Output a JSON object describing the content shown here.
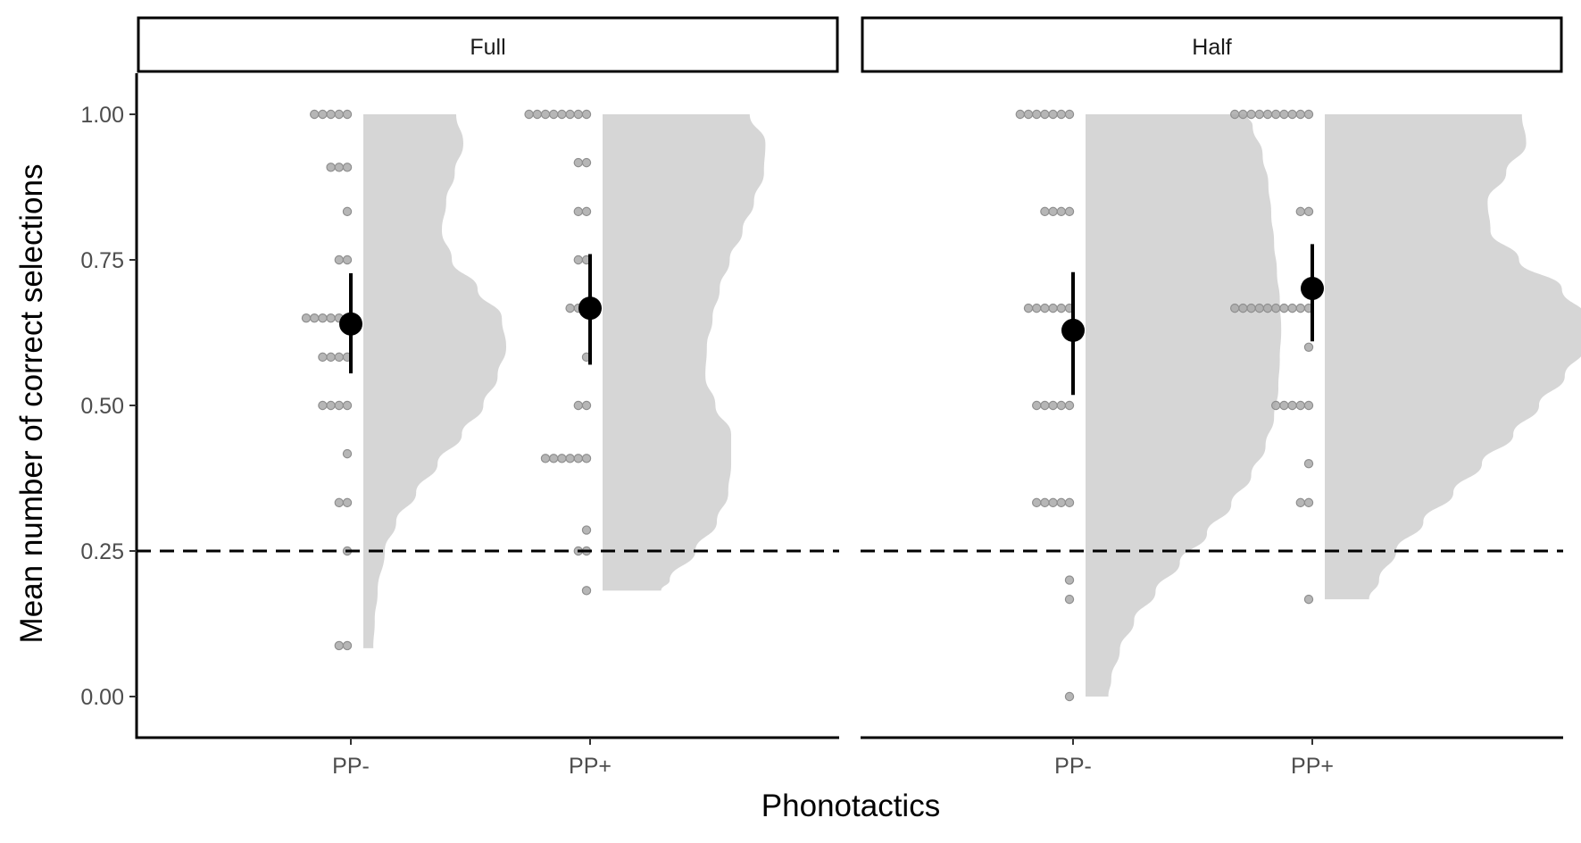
{
  "chart_data": {
    "type": "raincloud",
    "xlabel": "Phonotactics",
    "ylabel": "Mean number of correct selections",
    "ylim": [
      -0.07,
      1.07
    ],
    "yticks": [
      0,
      0.25,
      0.5,
      0.75,
      1.0
    ],
    "ytick_labels": [
      "0.00",
      "0.25",
      "0.50",
      "0.75",
      "1.00"
    ],
    "reference_line": {
      "y": 0.25,
      "style": "dashed"
    },
    "categories": [
      "PP-",
      "PP+"
    ],
    "grid": false,
    "legend": "none",
    "colors": {
      "density": "#d6d6d6",
      "points": "#a9a9a9",
      "summary": "#000000"
    },
    "panels": [
      {
        "name": "Full",
        "groups": [
          {
            "category": "PP-",
            "mean": 0.64,
            "ci": [
              0.555,
              0.727
            ],
            "points": [
              {
                "y": 1.0,
                "n": 5
              },
              {
                "y": 0.909,
                "n": 3
              },
              {
                "y": 0.833,
                "n": 1
              },
              {
                "y": 0.75,
                "n": 2
              },
              {
                "y": 0.65,
                "n": 6
              },
              {
                "y": 0.583,
                "n": 4
              },
              {
                "y": 0.5,
                "n": 4
              },
              {
                "y": 0.417,
                "n": 1
              },
              {
                "y": 0.333,
                "n": 2
              },
              {
                "y": 0.25,
                "n": 1
              },
              {
                "y": 0.0875,
                "n": 2
              }
            ],
            "density": {
              "y": [
                0.083,
                0.13,
                0.18,
                0.25,
                0.3,
                0.35,
                0.4,
                0.45,
                0.5,
                0.55,
                0.6,
                0.65,
                0.7,
                0.75,
                0.8,
                0.85,
                0.9,
                0.95,
                1.0
              ],
              "d": [
                0.07,
                0.08,
                0.1,
                0.15,
                0.23,
                0.37,
                0.52,
                0.69,
                0.84,
                0.94,
                1.0,
                0.97,
                0.8,
                0.62,
                0.55,
                0.58,
                0.64,
                0.7,
                0.65
              ]
            }
          },
          {
            "category": "PP+",
            "mean": 0.667,
            "ci": [
              0.57,
              0.76
            ],
            "points": [
              {
                "y": 1.0,
                "n": 8
              },
              {
                "y": 0.917,
                "n": 2
              },
              {
                "y": 0.833,
                "n": 2
              },
              {
                "y": 0.75,
                "n": 2
              },
              {
                "y": 0.667,
                "n": 3
              },
              {
                "y": 0.583,
                "n": 1
              },
              {
                "y": 0.5,
                "n": 2
              },
              {
                "y": 0.409,
                "n": 6
              },
              {
                "y": 0.286,
                "n": 1
              },
              {
                "y": 0.25,
                "n": 2
              },
              {
                "y": 0.182,
                "n": 1
              }
            ],
            "density": {
              "y": [
                0.182,
                0.2,
                0.25,
                0.3,
                0.35,
                0.4,
                0.45,
                0.5,
                0.55,
                0.6,
                0.65,
                0.7,
                0.75,
                0.8,
                0.85,
                0.9,
                0.95,
                1.0
              ],
              "d": [
                0.41,
                0.47,
                0.65,
                0.8,
                0.88,
                0.9,
                0.9,
                0.79,
                0.72,
                0.73,
                0.77,
                0.82,
                0.89,
                0.98,
                1.06,
                1.13,
                1.14,
                1.03
              ]
            }
          }
        ]
      },
      {
        "name": "Half",
        "groups": [
          {
            "category": "PP-",
            "mean": 0.629,
            "ci": [
              0.518,
              0.729
            ],
            "points": [
              {
                "y": 1.0,
                "n": 7
              },
              {
                "y": 0.833,
                "n": 4
              },
              {
                "y": 0.667,
                "n": 6
              },
              {
                "y": 0.5,
                "n": 5
              },
              {
                "y": 0.333,
                "n": 5
              },
              {
                "y": 0.2,
                "n": 1
              },
              {
                "y": 0.167,
                "n": 1
              },
              {
                "y": 0.0,
                "n": 1
              }
            ],
            "density": {
              "y": [
                0.0,
                0.03,
                0.08,
                0.13,
                0.18,
                0.23,
                0.28,
                0.33,
                0.38,
                0.43,
                0.48,
                0.53,
                0.58,
                0.63,
                0.68,
                0.73,
                0.78,
                0.83,
                0.88,
                0.93,
                0.98,
                1.0
              ],
              "d": [
                0.16,
                0.18,
                0.24,
                0.34,
                0.49,
                0.66,
                0.85,
                1.02,
                1.16,
                1.26,
                1.32,
                1.35,
                1.36,
                1.37,
                1.36,
                1.34,
                1.32,
                1.3,
                1.28,
                1.24,
                1.17,
                1.13
              ]
            }
          },
          {
            "category": "PP+",
            "mean": 0.701,
            "ci": [
              0.61,
              0.777
            ],
            "points": [
              {
                "y": 1.0,
                "n": 10
              },
              {
                "y": 0.833,
                "n": 2
              },
              {
                "y": 0.667,
                "n": 10
              },
              {
                "y": 0.6,
                "n": 1
              },
              {
                "y": 0.5,
                "n": 5
              },
              {
                "y": 0.4,
                "n": 1
              },
              {
                "y": 0.333,
                "n": 2
              },
              {
                "y": 0.167,
                "n": 1
              }
            ],
            "density": {
              "y": [
                0.167,
                0.2,
                0.25,
                0.3,
                0.35,
                0.4,
                0.45,
                0.5,
                0.55,
                0.6,
                0.65,
                0.7,
                0.75,
                0.8,
                0.85,
                0.9,
                0.95,
                1.0
              ],
              "d": [
                0.31,
                0.38,
                0.5,
                0.69,
                0.9,
                1.1,
                1.32,
                1.5,
                1.68,
                1.82,
                1.83,
                1.66,
                1.36,
                1.16,
                1.14,
                1.27,
                1.41,
                1.38
              ]
            }
          }
        ]
      }
    ]
  }
}
